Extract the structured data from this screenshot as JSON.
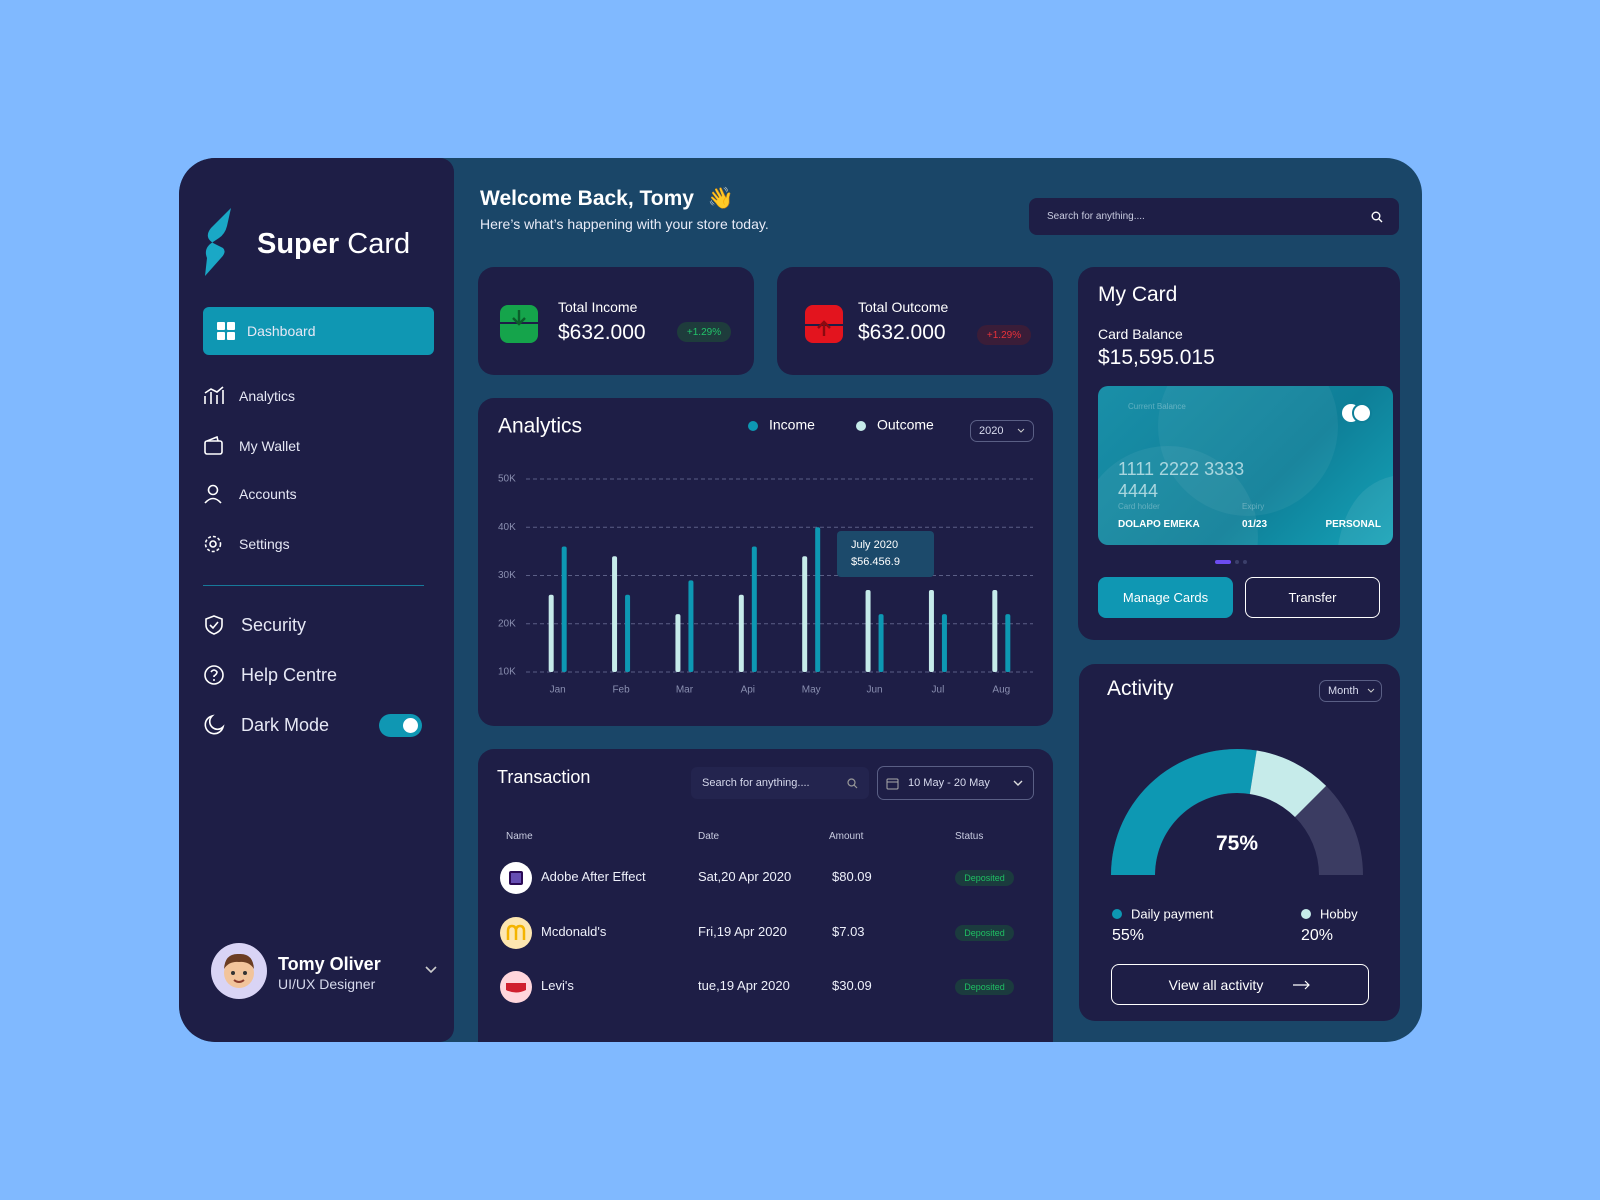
{
  "sidebar": {
    "brand_bold": "Super",
    "brand_light": "Card",
    "nav": [
      "Dashboard",
      "Analytics",
      "My Wallet",
      "Accounts",
      "Settings"
    ],
    "nav2": [
      "Security",
      "Help Centre",
      "Dark Mode"
    ],
    "user": {
      "name": "Tomy Oliver",
      "role": "UI/UX Designer"
    }
  },
  "header": {
    "title": "Welcome Back, Tomy",
    "wave": "👋",
    "subtitle": "Here’s what’s happening with your store today.",
    "search": "Search for anything...."
  },
  "stats": [
    {
      "label": "Total Income",
      "value": "$632.000",
      "change": "+1.29%"
    },
    {
      "label": "Total Outcome",
      "value": "$632.000",
      "change": "+1.29%"
    }
  ],
  "analytics": {
    "title": "Analytics",
    "year": "2020",
    "categories": [
      "Jan",
      "Feb",
      "Mar",
      "Api",
      "May",
      "Jun",
      "Jul",
      "Aug"
    ],
    "series": [
      {
        "name": "Income",
        "color": "#0d98b3",
        "values": [
          36000,
          26000,
          29000,
          36000,
          40000,
          22000,
          22000,
          22000
        ]
      },
      {
        "name": "Outcome",
        "color": "#c6ebea",
        "values": [
          26000,
          34000,
          22000,
          26000,
          34000,
          27000,
          27000,
          27000
        ]
      }
    ],
    "ylim": [
      10000,
      50000
    ],
    "yticks": [
      {
        "value": 10000,
        "label": "10K"
      },
      {
        "value": 20000,
        "label": "20K"
      },
      {
        "value": 30000,
        "label": "30K"
      },
      {
        "value": 40000,
        "label": "40K"
      },
      {
        "value": 50000,
        "label": "50K"
      }
    ],
    "tooltip": {
      "title": "July 2020",
      "value": "$56.456.9"
    }
  },
  "card": {
    "title": "My Card",
    "balance_label": "Card Balance",
    "balance": "$15,595.015",
    "current_balance": "Current Balance",
    "number_1": "1111 2222 3333",
    "number_2": "4444",
    "holder_label": "Card holder",
    "expiry_label": "Expiry",
    "holder": "DOLAPO EMEKA",
    "expiry": "01/23",
    "kind": "PERSONAL",
    "manage": "Manage Cards",
    "transfer": "Transfer"
  },
  "transaction": {
    "title": "Transaction",
    "search": "Search for anything....",
    "range": "10 May - 20 May",
    "columns": [
      "Name",
      "Date",
      "Amount",
      "Status"
    ],
    "rows": [
      [
        "Adobe After Effect",
        "Sat,20 Apr 2020",
        "$80.09",
        "Deposited"
      ],
      [
        "Mcdonald's",
        "Fri,19 Apr 2020",
        "$7.03",
        "Deposited"
      ],
      [
        "Levi's",
        "tue,19 Apr 2020",
        "$30.09",
        "Deposited"
      ]
    ]
  },
  "activity": {
    "title": "Activity",
    "period": "Month",
    "center_label": "75%",
    "segments": [
      {
        "name": "Daily payment",
        "color": "#0d98b3",
        "value": 55,
        "label": "55%"
      },
      {
        "name": "Hobby",
        "color": "#c6ebea",
        "value": 20,
        "label": "20%"
      }
    ],
    "button": "View all activity"
  }
}
